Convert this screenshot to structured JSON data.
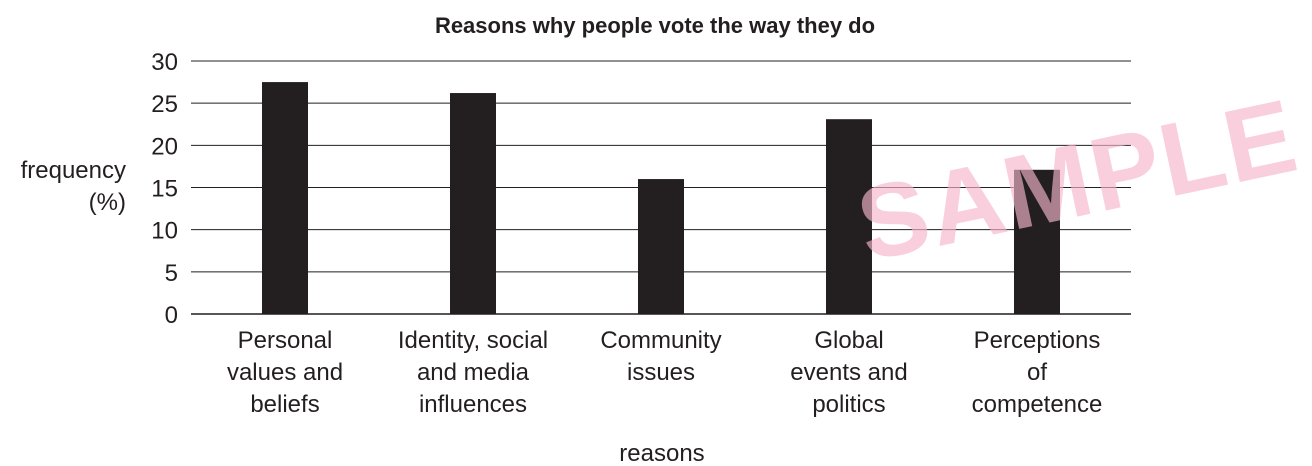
{
  "chart_data": {
    "type": "bar",
    "title": "Reasons why people vote the way they do",
    "xlabel": "reasons",
    "ylabel_lines": [
      "frequency",
      "(%)"
    ],
    "categories": [
      [
        "Personal",
        "values and",
        "beliefs"
      ],
      [
        "Identity, social",
        "and media",
        "influences"
      ],
      [
        "Community",
        "issues"
      ],
      [
        "Global",
        "events and",
        "politics"
      ],
      [
        "Perceptions",
        "of",
        "competence"
      ]
    ],
    "values": [
      27.5,
      26.2,
      16.0,
      23.1,
      17.1
    ],
    "ylim": [
      0,
      30
    ],
    "yticks": [
      0,
      5,
      10,
      15,
      20,
      25,
      30
    ],
    "grid": true,
    "bar_color": "#231f20"
  },
  "watermark": {
    "text": "SAMPLE",
    "color": "#f6b6cb"
  }
}
